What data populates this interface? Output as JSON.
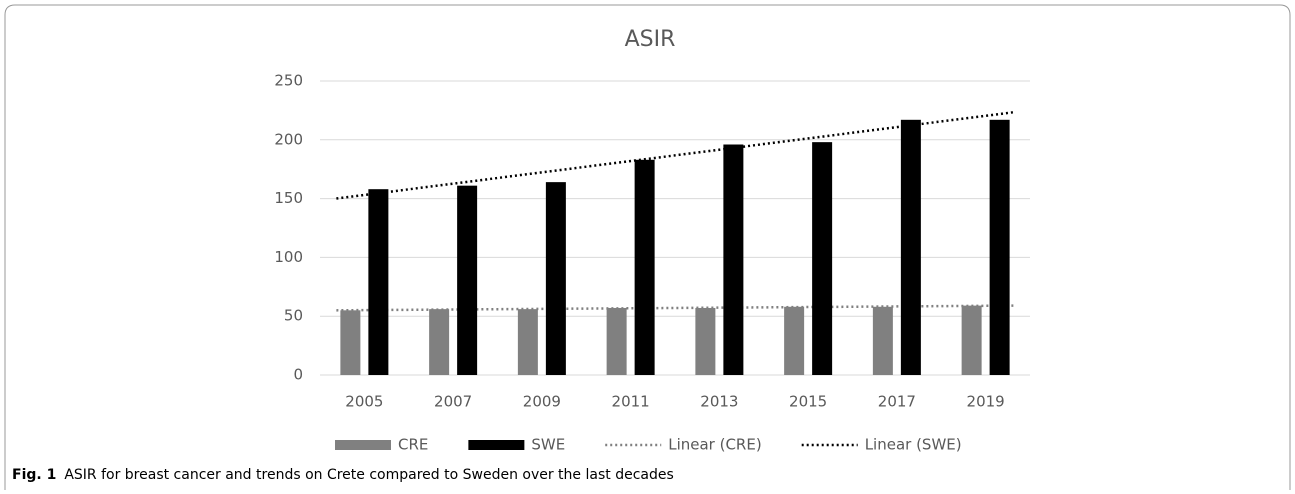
{
  "chart_data": {
    "type": "bar",
    "title": "ASIR",
    "categories": [
      "2005",
      "2007",
      "2009",
      "2011",
      "2013",
      "2015",
      "2017",
      "2019"
    ],
    "series": [
      {
        "name": "CRE",
        "color": "#808080",
        "values": [
          55,
          56,
          56,
          57,
          57,
          58,
          58,
          59
        ],
        "trendline": "Linear (CRE)"
      },
      {
        "name": "SWE",
        "color": "#000000",
        "values": [
          158,
          161,
          164,
          183,
          196,
          198,
          217,
          217
        ],
        "trendline": "Linear (SWE)"
      }
    ],
    "ylim": [
      0,
      250
    ],
    "yticks": [
      0,
      50,
      100,
      150,
      200,
      250
    ],
    "grid": true,
    "legend": "bottom"
  },
  "caption": {
    "label": "Fig. 1",
    "text": "ASIR for breast cancer and trends on Crete compared to Sweden over the last decades"
  }
}
